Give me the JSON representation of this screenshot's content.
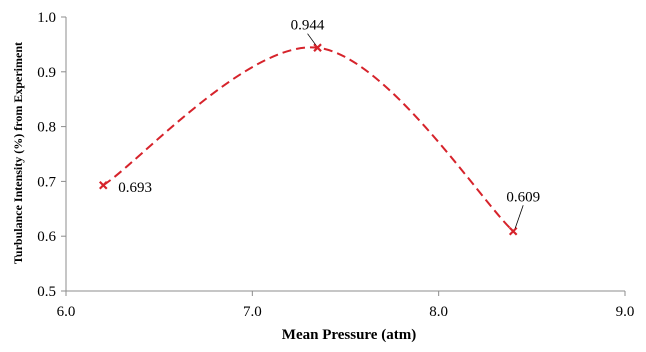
{
  "chart_data": {
    "type": "scatter",
    "title": "",
    "xlabel": "Mean Pressure (atm)",
    "ylabel": "Turbulance Intensity (%) from Experiment",
    "xlim": [
      6.0,
      9.0
    ],
    "ylim": [
      0.5,
      1.0
    ],
    "x_ticks": [
      "6.0",
      "7.0",
      "8.0",
      "9.0"
    ],
    "y_ticks": [
      "0.5",
      "0.6",
      "0.7",
      "0.8",
      "0.9",
      "1.0"
    ],
    "grid": false,
    "legend": "none",
    "line_style": "dashed smooth curve",
    "marker": "x",
    "series_color": "#d6232b",
    "series": [
      {
        "x": [
          6.2,
          7.35,
          8.4
        ],
        "y": [
          0.693,
          0.944,
          0.609
        ],
        "labels": [
          "0.693",
          "0.944",
          "0.609"
        ]
      }
    ]
  }
}
